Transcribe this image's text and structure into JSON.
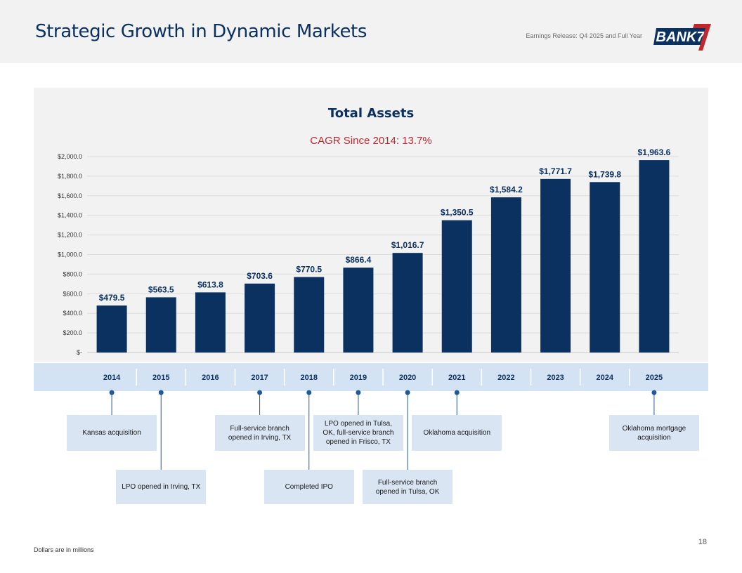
{
  "page": {
    "title": "Strategic Growth in Dynamic Markets",
    "release_label": "Earnings Release: Q4 2025 and Full Year",
    "logo_text": "BANK7",
    "footnote": "Dollars are in millions",
    "page_number": "18"
  },
  "colors": {
    "bar": "#0b3161",
    "title": "#0b3161",
    "cagr": "#c0282d",
    "band": "#d4e3f4",
    "marker": "#1f5a96",
    "box": "#d9e5f3"
  },
  "chart_data": {
    "type": "bar",
    "title": "Total Assets",
    "subtitle": "CAGR Since 2014: 13.7%",
    "categories": [
      "2014",
      "2015",
      "2016",
      "2017",
      "2018",
      "2019",
      "2020",
      "2021",
      "2022",
      "2023",
      "2024",
      "2025"
    ],
    "values": [
      479.5,
      563.5,
      613.8,
      703.6,
      770.5,
      866.4,
      1016.7,
      1350.5,
      1584.2,
      1771.7,
      1739.8,
      1963.6
    ],
    "value_labels": [
      "$479.5",
      "$563.5",
      "$613.8",
      "$703.6",
      "$770.5",
      "$866.4",
      "$1,016.7",
      "$1,350.5",
      "$1,584.2",
      "$1,771.7",
      "$1,739.8",
      "$1,963.6"
    ],
    "ylim": [
      0,
      2000
    ],
    "yticks": [
      0,
      200,
      400,
      600,
      800,
      1000,
      1200,
      1400,
      1600,
      1800,
      2000
    ],
    "ytick_labels": [
      "$-",
      "$200.0",
      "$400.0",
      "$600.0",
      "$800.0",
      "$1,000.0",
      "$1,200.0",
      "$1,400.0",
      "$1,600.0",
      "$1,800.0",
      "$2,000.0"
    ],
    "xlabel": "",
    "ylabel": "",
    "grid": true
  },
  "timeline": {
    "events": [
      {
        "year": "2014",
        "label": "Kansas acquisition",
        "row": "upper"
      },
      {
        "year": "2015",
        "label": "LPO opened in Irving, TX",
        "row": "lower"
      },
      {
        "year": "2017",
        "label": "Full-service branch opened in Irving, TX",
        "row": "upper"
      },
      {
        "year": "2018",
        "label": "Completed IPO",
        "row": "lower"
      },
      {
        "year": "2019",
        "label": "LPO opened in Tulsa, OK, full-service branch opened in Frisco, TX",
        "row": "upper"
      },
      {
        "year": "2020",
        "label": "Full-service branch opened in Tulsa, OK",
        "row": "lower"
      },
      {
        "year": "2021",
        "label": "Oklahoma acquisition",
        "row": "upper"
      },
      {
        "year": "2025",
        "label": "Oklahoma mortgage acquisition",
        "row": "upper"
      }
    ]
  }
}
